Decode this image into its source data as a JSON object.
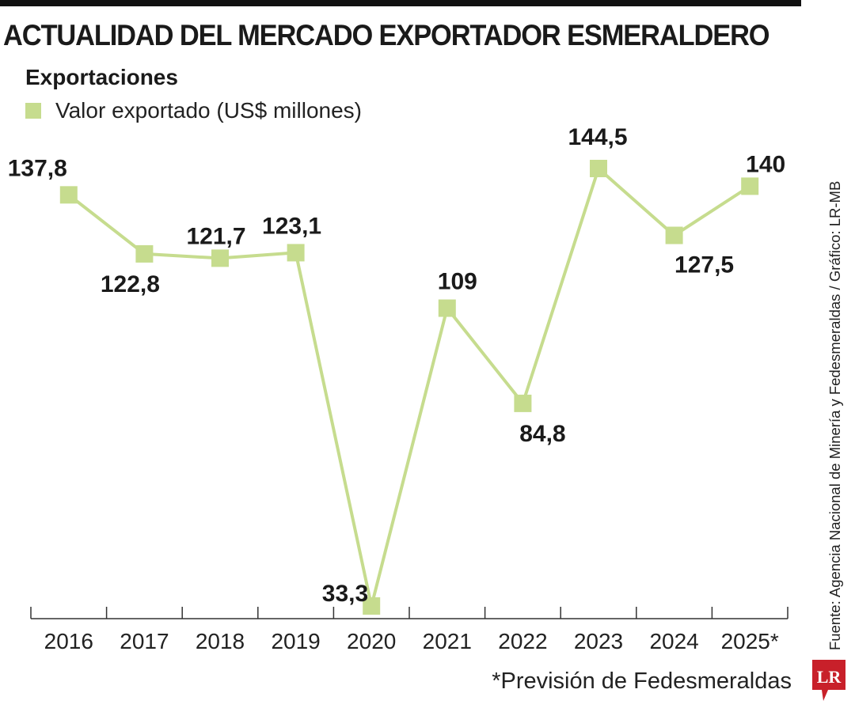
{
  "title": "ACTUALIDAD DEL MERCADO EXPORTADOR ESMERALDERO",
  "subtitle": "Exportaciones",
  "source": "Fuente: Agencia Nacional de Minería y Fedesmeraldas / Gráfico: LR-MB",
  "note": "*Previsión de Fedesmeraldas",
  "logo_text": "LR",
  "colors": {
    "series": "#c6dc8e",
    "logo": "#c8202a",
    "axis": "#333333"
  },
  "chart_data": {
    "type": "line",
    "title": "Exportaciones",
    "categories": [
      "2016",
      "2017",
      "2018",
      "2019",
      "2020",
      "2021",
      "2022",
      "2023",
      "2024",
      "2025*"
    ],
    "series": [
      {
        "name": "Valor exportado (US$ millones)",
        "values": [
          137.8,
          122.8,
          121.7,
          123.1,
          33.3,
          109,
          84.8,
          144.5,
          127.5,
          140
        ]
      }
    ],
    "data_labels": [
      "137,8",
      "122,8",
      "121,7",
      "123,1",
      "33,3",
      "109",
      "84,8",
      "144,5",
      "127,5",
      "140"
    ],
    "marker": "square",
    "grid": false,
    "yaxis_visible": false,
    "legend_position": "top-left"
  }
}
